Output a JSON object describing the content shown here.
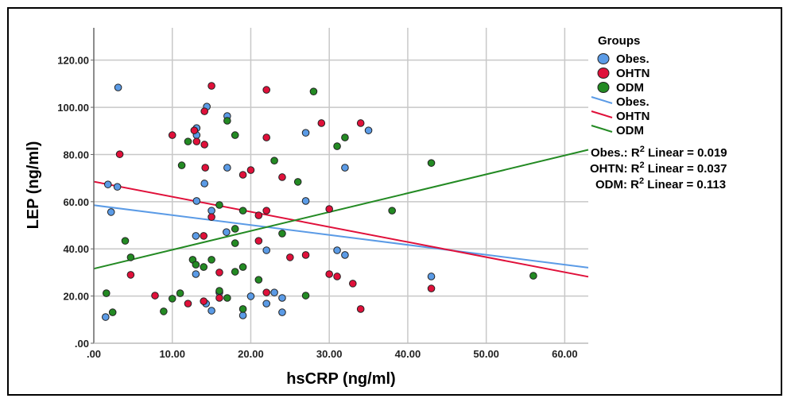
{
  "chart_data": {
    "type": "scatter",
    "xlabel": "hsCRP (ng/ml)",
    "ylabel": "LEP (ng/ml)",
    "xlim": [
      0,
      63
    ],
    "ylim": [
      0,
      133.7
    ],
    "x_ticks": [
      ".00",
      "10.00",
      "20.00",
      "30.00",
      "40.00",
      "50.00",
      "60.00"
    ],
    "x_tick_values": [
      0,
      10,
      20,
      30,
      40,
      50,
      60
    ],
    "y_ticks": [
      ".00",
      "20.00",
      "40.00",
      "60.00",
      "80.00",
      "100.00",
      "120.00"
    ],
    "y_tick_values": [
      0,
      20,
      40,
      60,
      80,
      100,
      120
    ],
    "grid": true,
    "legend": {
      "title": "Groups",
      "placement": "right",
      "marker_entries": [
        "Obes.",
        "OHTN",
        "ODM"
      ],
      "line_entries": [
        "Obes.",
        "OHTN",
        "ODM"
      ]
    },
    "series": [
      {
        "name": "Obes.",
        "color": "#5b9be6",
        "points": [
          [
            3.1,
            108.4
          ],
          [
            14.4,
            100.3
          ],
          [
            17,
            96.3
          ],
          [
            13.1,
            91.2
          ],
          [
            13.1,
            88.2
          ],
          [
            27,
            89.2
          ],
          [
            35,
            90.2
          ],
          [
            17,
            74.4
          ],
          [
            32,
            74.4
          ],
          [
            1.8,
            67.3
          ],
          [
            3,
            66.3
          ],
          [
            14.1,
            67.7
          ],
          [
            13.1,
            60.3
          ],
          [
            27,
            60.3
          ],
          [
            2.2,
            55.6
          ],
          [
            15,
            56.2
          ],
          [
            16.9,
            47.1
          ],
          [
            13,
            45.5
          ],
          [
            22,
            39.4
          ],
          [
            31,
            39.4
          ],
          [
            32,
            37.4
          ],
          [
            43,
            28.3
          ],
          [
            13,
            29.3
          ],
          [
            16,
            21.5
          ],
          [
            20,
            19.9
          ],
          [
            23,
            21.5
          ],
          [
            24,
            19.2
          ],
          [
            22,
            16.8
          ],
          [
            14.3,
            16.8
          ],
          [
            15,
            13.8
          ],
          [
            19,
            11.8
          ],
          [
            1.5,
            11.1
          ],
          [
            24,
            13.1
          ]
        ],
        "fit": {
          "intercept": 58.5,
          "slope": -0.42
        },
        "r2_label": "Obes.: R",
        "r2_text": "Linear = 0.019"
      },
      {
        "name": "OHTN",
        "color": "#e0103a",
        "points": [
          [
            15,
            109.1
          ],
          [
            22,
            107.4
          ],
          [
            14.1,
            98.3
          ],
          [
            12.8,
            90.2
          ],
          [
            10,
            88.2
          ],
          [
            13.1,
            85.5
          ],
          [
            14.1,
            84.2
          ],
          [
            22,
            87.2
          ],
          [
            29,
            93.3
          ],
          [
            34,
            93.3
          ],
          [
            3.3,
            80.1
          ],
          [
            14.2,
            74.4
          ],
          [
            19,
            71.4
          ],
          [
            20,
            73.4
          ],
          [
            24,
            70.4
          ],
          [
            22,
            56.2
          ],
          [
            30,
            56.9
          ],
          [
            15,
            53.5
          ],
          [
            21,
            54.2
          ],
          [
            14,
            45.5
          ],
          [
            21,
            43.4
          ],
          [
            25,
            36.4
          ],
          [
            27,
            37.4
          ],
          [
            30,
            29.3
          ],
          [
            31,
            28.3
          ],
          [
            33,
            25.3
          ],
          [
            4.7,
            29
          ],
          [
            16,
            30
          ],
          [
            7.8,
            20.2
          ],
          [
            12,
            16.8
          ],
          [
            14,
            17.8
          ],
          [
            16,
            19.2
          ],
          [
            22,
            21.5
          ],
          [
            34,
            14.5
          ],
          [
            43,
            23.2
          ]
        ],
        "fit": {
          "intercept": 68.5,
          "slope": -0.64
        },
        "r2_label": "OHTN: R",
        "r2_text": "Linear = 0.037"
      },
      {
        "name": "ODM",
        "color": "#238a23",
        "points": [
          [
            17,
            94.3
          ],
          [
            18,
            88.2
          ],
          [
            12,
            85.5
          ],
          [
            11.2,
            75.4
          ],
          [
            16,
            58.6
          ],
          [
            28,
            106.7
          ],
          [
            32,
            87.2
          ],
          [
            31,
            83.5
          ],
          [
            23,
            77.4
          ],
          [
            26,
            68.4
          ],
          [
            43,
            76.4
          ],
          [
            38,
            56.2
          ],
          [
            24,
            46.5
          ],
          [
            27,
            20.2
          ],
          [
            56,
            28.6
          ],
          [
            19,
            56.2
          ],
          [
            4,
            43.4
          ],
          [
            4.7,
            36.4
          ],
          [
            18,
            48.5
          ],
          [
            18,
            42.4
          ],
          [
            12.6,
            35.4
          ],
          [
            13,
            33.3
          ],
          [
            14,
            32.3
          ],
          [
            15,
            35.4
          ],
          [
            18,
            30.3
          ],
          [
            19,
            32.3
          ],
          [
            21,
            26.9
          ],
          [
            1.6,
            21.2
          ],
          [
            11,
            21.2
          ],
          [
            10,
            18.9
          ],
          [
            16,
            22.2
          ],
          [
            17,
            19.2
          ],
          [
            2.4,
            13.1
          ],
          [
            8.9,
            13.5
          ],
          [
            19,
            14.5
          ]
        ],
        "fit": {
          "intercept": 31.6,
          "slope": 0.8
        },
        "r2_label": "ODM: R",
        "r2_text": "Linear = 0.113"
      }
    ]
  }
}
